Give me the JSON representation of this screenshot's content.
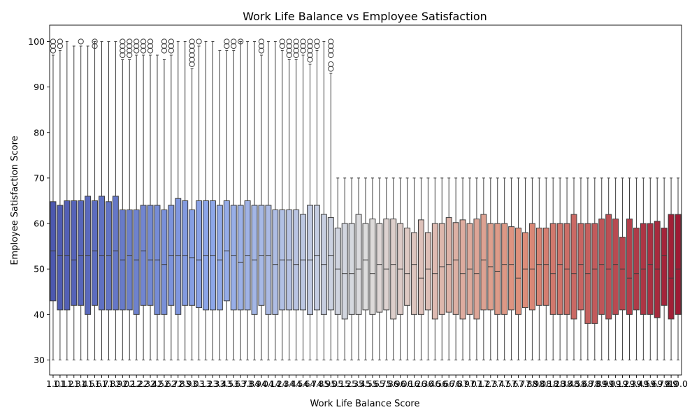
{
  "chart_data": {
    "type": "box",
    "title": "Work Life Balance vs Employee Satisfaction",
    "xlabel": "Work Life Balance Score",
    "ylabel": "Employee Satisfaction Score",
    "ylim": [
      26.7,
      103.6
    ],
    "yticks": [
      30,
      40,
      50,
      60,
      70,
      80,
      90,
      100
    ],
    "categories": [
      "1.0",
      "1.1",
      "1.2",
      "1.3",
      "1.4",
      "1.5",
      "1.6",
      "1.7",
      "1.8",
      "1.9",
      "2.0",
      "2.1",
      "2.2",
      "2.3",
      "2.4",
      "2.5",
      "2.6",
      "2.7",
      "2.8",
      "2.9",
      "3.0",
      "3.1",
      "3.2",
      "3.3",
      "3.4",
      "3.5",
      "3.6",
      "3.7",
      "3.8",
      "3.9",
      "4.0",
      "4.1",
      "4.2",
      "4.3",
      "4.4",
      "4.5",
      "4.6",
      "4.7",
      "4.8",
      "4.9",
      "5.0",
      "5.1",
      "5.2",
      "5.3",
      "5.4",
      "5.5",
      "5.6",
      "5.7",
      "5.8",
      "5.9",
      "6.0",
      "6.1",
      "6.2",
      "6.3",
      "6.4",
      "6.5",
      "6.6",
      "6.7",
      "6.8",
      "6.9",
      "7.0",
      "7.1",
      "7.2",
      "7.3",
      "7.4",
      "7.5",
      "7.6",
      "7.7",
      "7.8",
      "7.9",
      "8.0",
      "8.1",
      "8.2",
      "8.3",
      "8.4",
      "8.5",
      "8.6",
      "8.7",
      "8.8",
      "8.9",
      "9.0",
      "9.1",
      "9.2",
      "9.3",
      "9.4",
      "9.5",
      "9.6",
      "9.7",
      "9.8",
      "9.9",
      "10.0"
    ],
    "q1": [
      43,
      41,
      41,
      42,
      42,
      40,
      42,
      41,
      41,
      41,
      41,
      41,
      40,
      42,
      42,
      40,
      40,
      42,
      40,
      42,
      42,
      41.5,
      41,
      41,
      41,
      43,
      41,
      41,
      41,
      40,
      42,
      40,
      40,
      41,
      41,
      41,
      41,
      40,
      41,
      40,
      41,
      40,
      39,
      40,
      40,
      41,
      40,
      40.5,
      41,
      39,
      40,
      42,
      40,
      40,
      41,
      39,
      40,
      40.5,
      40,
      39,
      40,
      39,
      41,
      41,
      40,
      40,
      41,
      40,
      41.5,
      41,
      42,
      42,
      40,
      40,
      40,
      39,
      41,
      38,
      38,
      40,
      39,
      40,
      41,
      40,
      41,
      40,
      40,
      39.3,
      42,
      39,
      40
    ],
    "median": [
      54,
      53,
      53,
      52,
      53,
      53,
      54,
      53,
      53,
      54,
      52,
      53,
      52,
      54,
      52,
      52,
      51,
      53,
      53,
      53,
      52.5,
      52,
      53,
      53,
      52,
      54,
      53,
      51.5,
      53,
      52,
      53,
      53,
      51,
      52,
      52,
      51,
      52,
      52,
      53,
      51,
      53,
      50,
      49,
      49,
      50,
      52,
      49,
      51,
      50,
      51,
      50,
      49,
      51,
      48,
      50,
      49,
      50.5,
      51,
      52,
      49,
      50,
      49,
      52,
      50.5,
      49.5,
      51,
      51,
      48,
      50,
      50,
      51,
      51,
      49,
      51,
      50,
      49,
      51,
      49,
      50,
      51,
      50,
      51,
      50,
      48,
      49,
      50,
      51,
      50,
      53,
      48,
      50
    ],
    "q3": [
      64.8,
      64,
      65,
      65,
      65,
      66,
      65,
      66,
      64.8,
      66,
      63,
      63,
      63,
      64,
      64,
      64,
      63,
      64,
      65.5,
      65,
      63,
      65,
      65,
      65,
      64,
      65,
      64,
      64,
      65,
      64,
      64,
      64,
      63,
      63,
      63,
      63,
      62,
      64,
      64,
      62,
      61.3,
      59,
      60,
      60,
      62,
      60,
      61,
      60,
      61,
      61,
      60,
      59,
      58,
      60.8,
      58,
      60,
      60,
      61.3,
      60.2,
      60.8,
      60,
      61,
      62,
      60,
      60,
      60,
      59.3,
      59,
      58,
      60,
      59,
      59,
      60,
      60,
      60,
      62,
      60,
      60,
      60,
      61,
      62,
      61,
      57,
      61,
      59,
      60,
      60,
      60.5,
      59,
      62,
      62
    ],
    "wlo": [
      30,
      30,
      30,
      30,
      30,
      30,
      30,
      30,
      30,
      30,
      30,
      30,
      30,
      30,
      30,
      30,
      30,
      30,
      30,
      30,
      30,
      30,
      30,
      30,
      30,
      30,
      30,
      30,
      30,
      30,
      30,
      30,
      30,
      30,
      30,
      30,
      30,
      30,
      30,
      30,
      30,
      30,
      30,
      30,
      30,
      30,
      30,
      30,
      30,
      30,
      30,
      30,
      30,
      30,
      30,
      30,
      30,
      30,
      30,
      30,
      30,
      30,
      30,
      30,
      30,
      30,
      30,
      30,
      30,
      30,
      30,
      30,
      30,
      30,
      30,
      30,
      30,
      30,
      30,
      30,
      30,
      30,
      30,
      30,
      30,
      30,
      30,
      30,
      30,
      30,
      30
    ],
    "whi": [
      97,
      98,
      100,
      99,
      99,
      99,
      100,
      100,
      100,
      100,
      96,
      96,
      97,
      97,
      97,
      97,
      96,
      97,
      100,
      100,
      94,
      99,
      100,
      100,
      98,
      98,
      98,
      100,
      100,
      100,
      97,
      100,
      100,
      98,
      96,
      96,
      97,
      95,
      98,
      100,
      93,
      70,
      70,
      70,
      70,
      70,
      70,
      70,
      70,
      70,
      70,
      70,
      70,
      70,
      70,
      70,
      70,
      70,
      70,
      70,
      70,
      70,
      70,
      70,
      70,
      70,
      70,
      70,
      70,
      70,
      70,
      70,
      70,
      70,
      70,
      70,
      70,
      70,
      70,
      70,
      70,
      70,
      70,
      70,
      70,
      70,
      70,
      70,
      70,
      70,
      70
    ],
    "fliers": [
      [
        98,
        99,
        100
      ],
      [
        99,
        100
      ],
      [],
      [],
      [
        100
      ],
      [],
      [
        99,
        100
      ],
      [],
      [],
      [],
      [
        97,
        98,
        99,
        100
      ],
      [
        97,
        98,
        99,
        100
      ],
      [
        98,
        99,
        100
      ],
      [
        98,
        99,
        100
      ],
      [
        98,
        99,
        100
      ],
      [],
      [
        98,
        99,
        100
      ],
      [
        98,
        99,
        100
      ],
      [],
      [],
      [
        95,
        96,
        97,
        98,
        99,
        100
      ],
      [
        100
      ],
      [],
      [],
      [],
      [
        99,
        100
      ],
      [
        99,
        100
      ],
      [
        100
      ],
      [],
      [],
      [
        98,
        99,
        100
      ],
      [],
      [],
      [
        99,
        100
      ],
      [
        97,
        98,
        99,
        100
      ],
      [
        97,
        98,
        99,
        100
      ],
      [
        98,
        99,
        100
      ],
      [
        96,
        97,
        98,
        99,
        100
      ],
      [
        99,
        100
      ],
      [],
      [
        94,
        95,
        97,
        98,
        99,
        100
      ],
      [],
      [],
      [],
      [],
      [],
      [],
      [],
      [],
      [],
      [],
      [],
      [],
      [],
      [],
      [],
      [],
      [],
      [],
      [],
      [],
      [],
      [],
      [],
      [],
      [],
      [],
      [],
      [],
      [],
      [],
      [],
      [],
      [],
      [],
      [],
      [],
      [],
      [],
      [],
      [],
      [],
      [],
      [],
      [],
      [],
      [],
      [],
      [],
      [],
      []
    ],
    "palette": "coolwarm"
  }
}
